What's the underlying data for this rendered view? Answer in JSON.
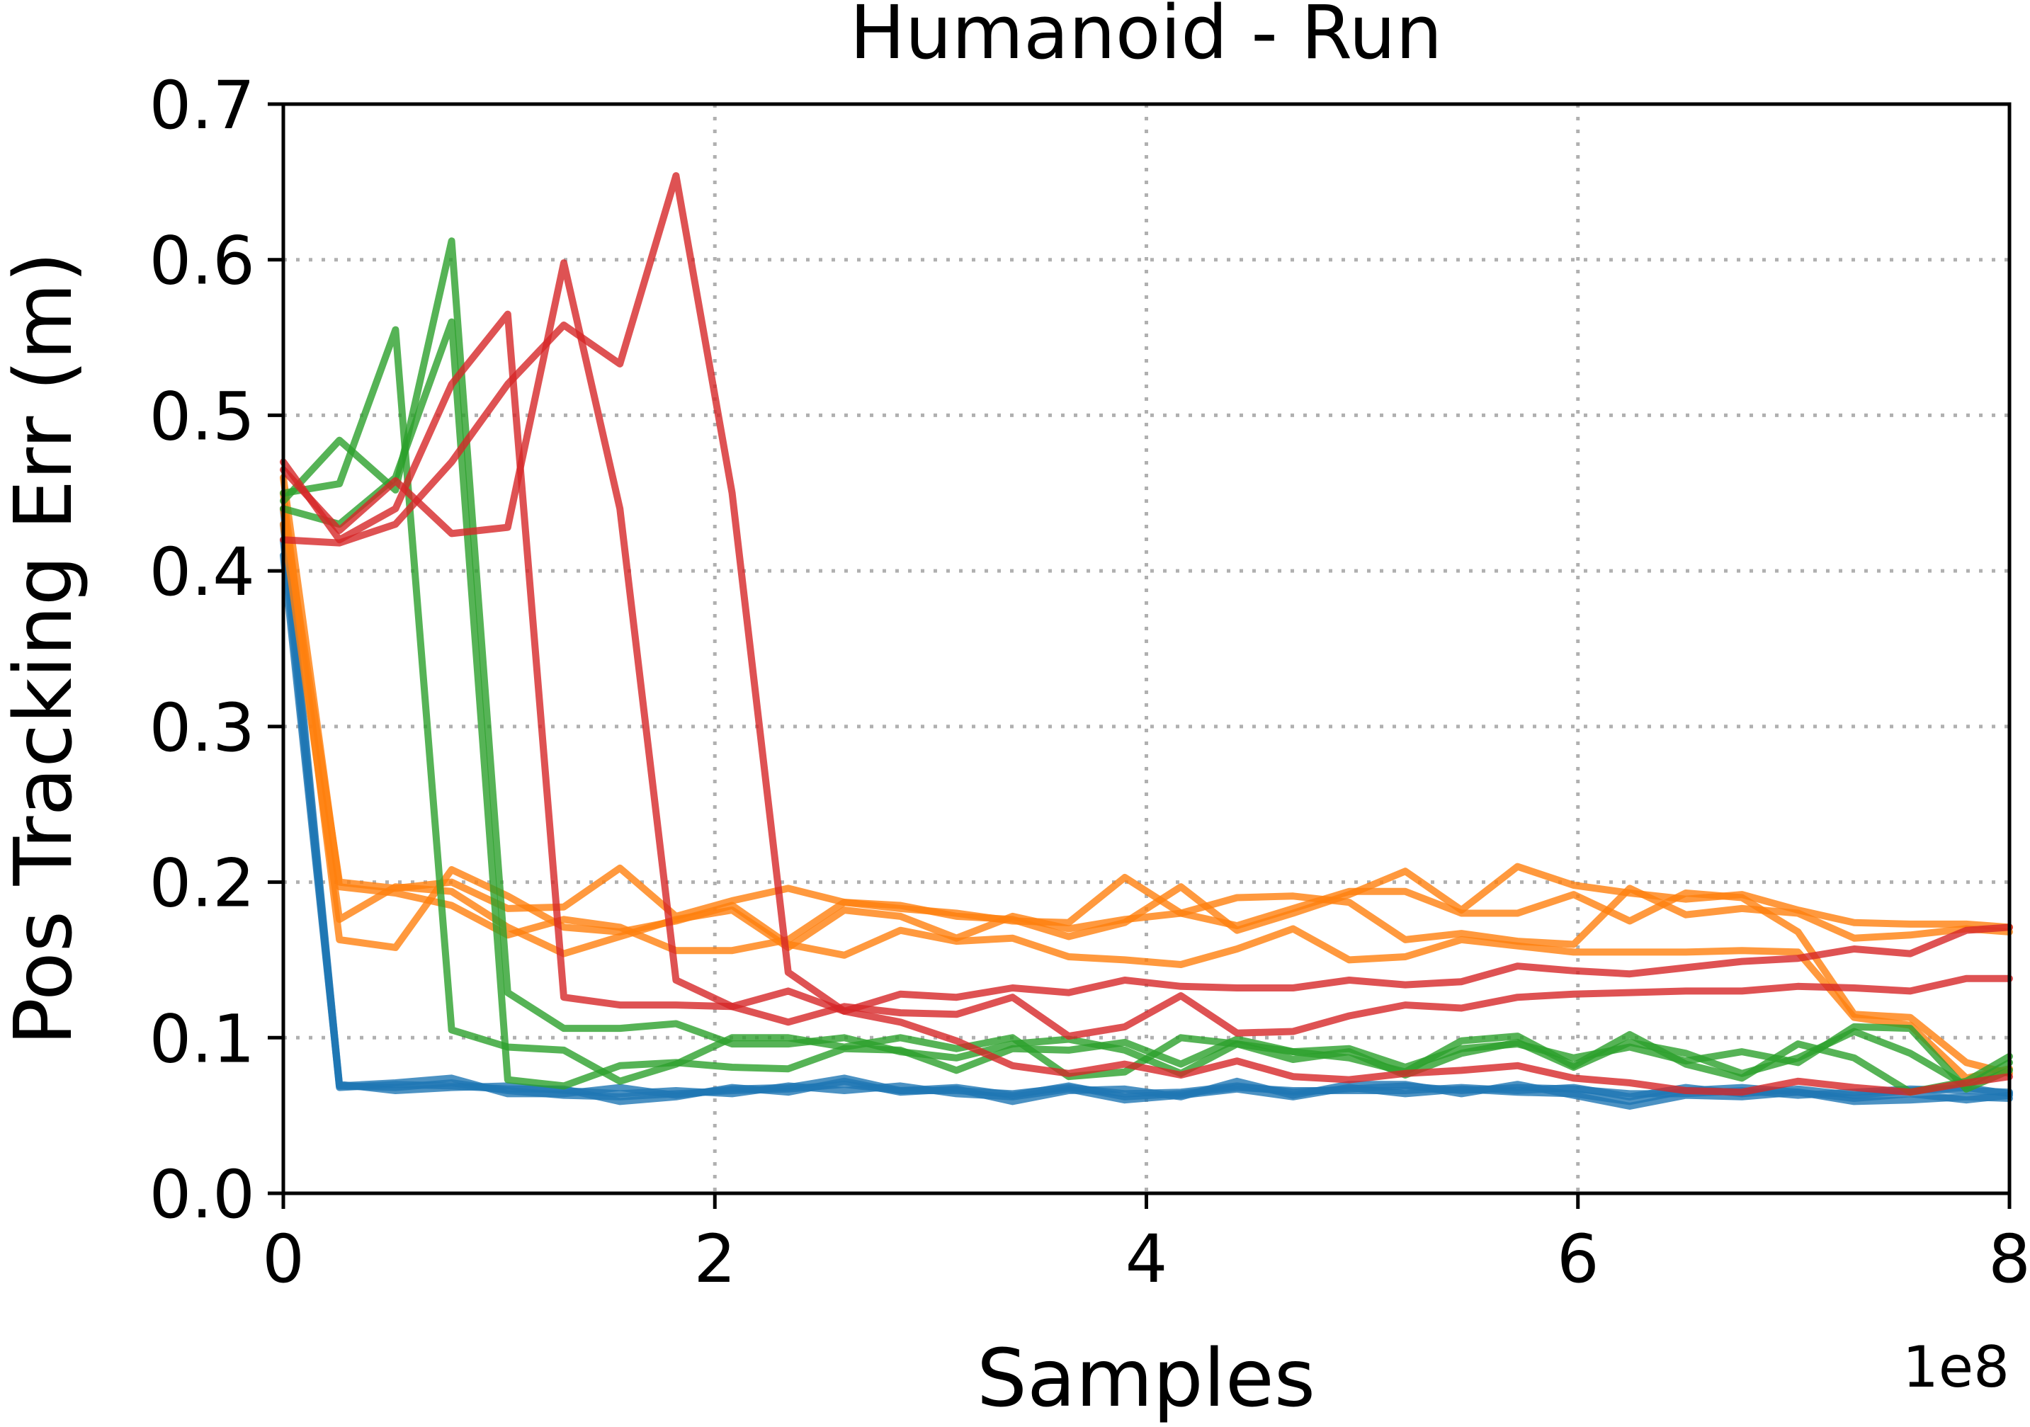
{
  "chart_data": {
    "type": "line",
    "title": "Humanoid - Run",
    "xlabel": "Samples",
    "ylabel": "Pos Tracking Err (m)",
    "x_offset_label": "1e8",
    "xlim": [
      0,
      800000000
    ],
    "ylim": [
      0,
      0.7
    ],
    "xticks": [
      0,
      200000000,
      400000000,
      600000000,
      800000000
    ],
    "xtick_labels": [
      "0",
      "2",
      "4",
      "6",
      "8"
    ],
    "yticks": [
      0,
      0.1,
      0.2,
      0.3,
      0.4,
      0.5,
      0.6,
      0.7
    ],
    "ytick_labels": [
      "0.0",
      "0.1",
      "0.2",
      "0.3",
      "0.4",
      "0.5",
      "0.6",
      "0.7"
    ],
    "grid": true,
    "legend": "none",
    "x": [
      0,
      26000000,
      52000000,
      78000000,
      104000000,
      130000000,
      156000000,
      182000000,
      208000000,
      234000000,
      260000000,
      286000000,
      312000000,
      338000000,
      364000000,
      390000000,
      416000000,
      442000000,
      468000000,
      494000000,
      520000000,
      546000000,
      572000000,
      598000000,
      624000000,
      650000000,
      676000000,
      702000000,
      728000000,
      754000000,
      780000000,
      800000000
    ],
    "series": [
      {
        "color": "#1f77b4",
        "values": [
          0.41,
          0.069,
          0.068,
          0.071,
          0.066,
          0.063,
          0.062,
          0.064,
          0.066,
          0.067,
          0.07,
          0.066,
          0.066,
          0.064,
          0.068,
          0.064,
          0.065,
          0.069,
          0.065,
          0.067,
          0.069,
          0.066,
          0.068,
          0.067,
          0.064,
          0.064,
          0.066,
          0.063,
          0.065,
          0.067,
          0.066,
          0.065
        ]
      },
      {
        "color": "#1f77b4",
        "values": [
          0.43,
          0.07,
          0.066,
          0.068,
          0.069,
          0.066,
          0.064,
          0.066,
          0.064,
          0.069,
          0.066,
          0.069,
          0.064,
          0.062,
          0.067,
          0.06,
          0.063,
          0.067,
          0.062,
          0.068,
          0.064,
          0.067,
          0.065,
          0.064,
          0.059,
          0.066,
          0.068,
          0.065,
          0.061,
          0.064,
          0.06,
          0.063
        ]
      },
      {
        "color": "#1f77b4",
        "values": [
          0.42,
          0.068,
          0.07,
          0.069,
          0.067,
          0.067,
          0.059,
          0.062,
          0.068,
          0.065,
          0.072,
          0.065,
          0.067,
          0.059,
          0.066,
          0.067,
          0.062,
          0.072,
          0.063,
          0.07,
          0.07,
          0.064,
          0.07,
          0.063,
          0.056,
          0.063,
          0.062,
          0.065,
          0.059,
          0.06,
          0.062,
          0.061
        ]
      },
      {
        "color": "#1f77b4",
        "values": [
          0.44,
          0.069,
          0.071,
          0.074,
          0.064,
          0.064,
          0.068,
          0.063,
          0.067,
          0.068,
          0.074,
          0.066,
          0.068,
          0.063,
          0.069,
          0.062,
          0.064,
          0.068,
          0.066,
          0.066,
          0.066,
          0.068,
          0.066,
          0.068,
          0.062,
          0.068,
          0.064,
          0.067,
          0.063,
          0.066,
          0.068,
          0.064
        ]
      },
      {
        "color": "#ff7f0e",
        "values": [
          0.44,
          0.2,
          0.196,
          0.2,
          0.183,
          0.184,
          0.209,
          0.178,
          0.188,
          0.196,
          0.187,
          0.185,
          0.178,
          0.176,
          0.165,
          0.174,
          0.197,
          0.169,
          0.18,
          0.192,
          0.207,
          0.182,
          0.21,
          0.198,
          0.193,
          0.189,
          0.192,
          0.182,
          0.174,
          0.173,
          0.173,
          0.171
        ]
      },
      {
        "color": "#ff7f0e",
        "values": [
          0.43,
          0.176,
          0.197,
          0.194,
          0.171,
          0.154,
          0.165,
          0.176,
          0.182,
          0.158,
          0.182,
          0.178,
          0.164,
          0.178,
          0.17,
          0.176,
          0.18,
          0.172,
          0.183,
          0.194,
          0.194,
          0.18,
          0.18,
          0.192,
          0.175,
          0.193,
          0.19,
          0.168,
          0.115,
          0.113,
          0.084,
          0.077
        ]
      },
      {
        "color": "#ff7f0e",
        "values": [
          0.45,
          0.163,
          0.158,
          0.208,
          0.191,
          0.171,
          0.168,
          0.175,
          0.185,
          0.16,
          0.153,
          0.169,
          0.162,
          0.164,
          0.152,
          0.15,
          0.147,
          0.157,
          0.17,
          0.15,
          0.152,
          0.163,
          0.159,
          0.155,
          0.155,
          0.155,
          0.156,
          0.155,
          0.113,
          0.108,
          0.074,
          0.08
        ]
      },
      {
        "color": "#ff7f0e",
        "values": [
          0.46,
          0.197,
          0.193,
          0.185,
          0.166,
          0.176,
          0.171,
          0.156,
          0.156,
          0.163,
          0.187,
          0.183,
          0.18,
          0.175,
          0.174,
          0.203,
          0.18,
          0.19,
          0.191,
          0.187,
          0.163,
          0.167,
          0.162,
          0.16,
          0.196,
          0.179,
          0.183,
          0.18,
          0.164,
          0.166,
          0.17,
          0.168
        ]
      },
      {
        "color": "#2ca02c",
        "values": [
          0.45,
          0.456,
          0.555,
          0.105,
          0.094,
          0.092,
          0.072,
          0.083,
          0.1,
          0.1,
          0.094,
          0.1,
          0.093,
          0.1,
          0.075,
          0.078,
          0.1,
          0.096,
          0.091,
          0.087,
          0.078,
          0.098,
          0.101,
          0.082,
          0.102,
          0.083,
          0.074,
          0.096,
          0.087,
          0.065,
          0.072,
          0.088
        ]
      },
      {
        "color": "#2ca02c",
        "values": [
          0.445,
          0.484,
          0.452,
          0.612,
          0.129,
          0.106,
          0.106,
          0.109,
          0.096,
          0.096,
          0.1,
          0.091,
          0.087,
          0.096,
          0.099,
          0.092,
          0.077,
          0.096,
          0.086,
          0.091,
          0.076,
          0.09,
          0.097,
          0.081,
          0.097,
          0.09,
          0.077,
          0.087,
          0.104,
          0.09,
          0.069,
          0.084
        ]
      },
      {
        "color": "#2ca02c",
        "values": [
          0.44,
          0.43,
          0.46,
          0.56,
          0.073,
          0.069,
          0.082,
          0.084,
          0.081,
          0.08,
          0.093,
          0.092,
          0.079,
          0.093,
          0.092,
          0.097,
          0.083,
          0.099,
          0.091,
          0.093,
          0.081,
          0.093,
          0.096,
          0.087,
          0.094,
          0.085,
          0.091,
          0.084,
          0.107,
          0.106,
          0.067,
          0.079
        ]
      },
      {
        "color": "#d62728",
        "values": [
          0.47,
          0.42,
          0.44,
          0.52,
          0.565,
          0.126,
          0.121,
          0.121,
          0.12,
          0.13,
          0.117,
          0.128,
          0.126,
          0.132,
          0.129,
          0.137,
          0.133,
          0.132,
          0.132,
          0.137,
          0.134,
          0.136,
          0.146,
          0.143,
          0.141,
          0.145,
          0.149,
          0.151,
          0.157,
          0.154,
          0.169,
          0.171
        ]
      },
      {
        "color": "#d62728",
        "values": [
          0.465,
          0.426,
          0.458,
          0.424,
          0.428,
          0.598,
          0.44,
          0.137,
          0.12,
          0.11,
          0.12,
          0.116,
          0.115,
          0.126,
          0.101,
          0.107,
          0.127,
          0.103,
          0.104,
          0.114,
          0.121,
          0.119,
          0.126,
          0.128,
          0.129,
          0.13,
          0.13,
          0.133,
          0.132,
          0.13,
          0.138,
          0.138
        ]
      },
      {
        "color": "#d62728",
        "values": [
          0.42,
          0.418,
          0.43,
          0.47,
          0.52,
          0.558,
          0.533,
          0.654,
          0.45,
          0.142,
          0.117,
          0.11,
          0.098,
          0.082,
          0.077,
          0.083,
          0.076,
          0.085,
          0.075,
          0.073,
          0.077,
          0.079,
          0.082,
          0.074,
          0.071,
          0.066,
          0.065,
          0.072,
          0.068,
          0.065,
          0.071,
          0.075
        ]
      }
    ]
  }
}
